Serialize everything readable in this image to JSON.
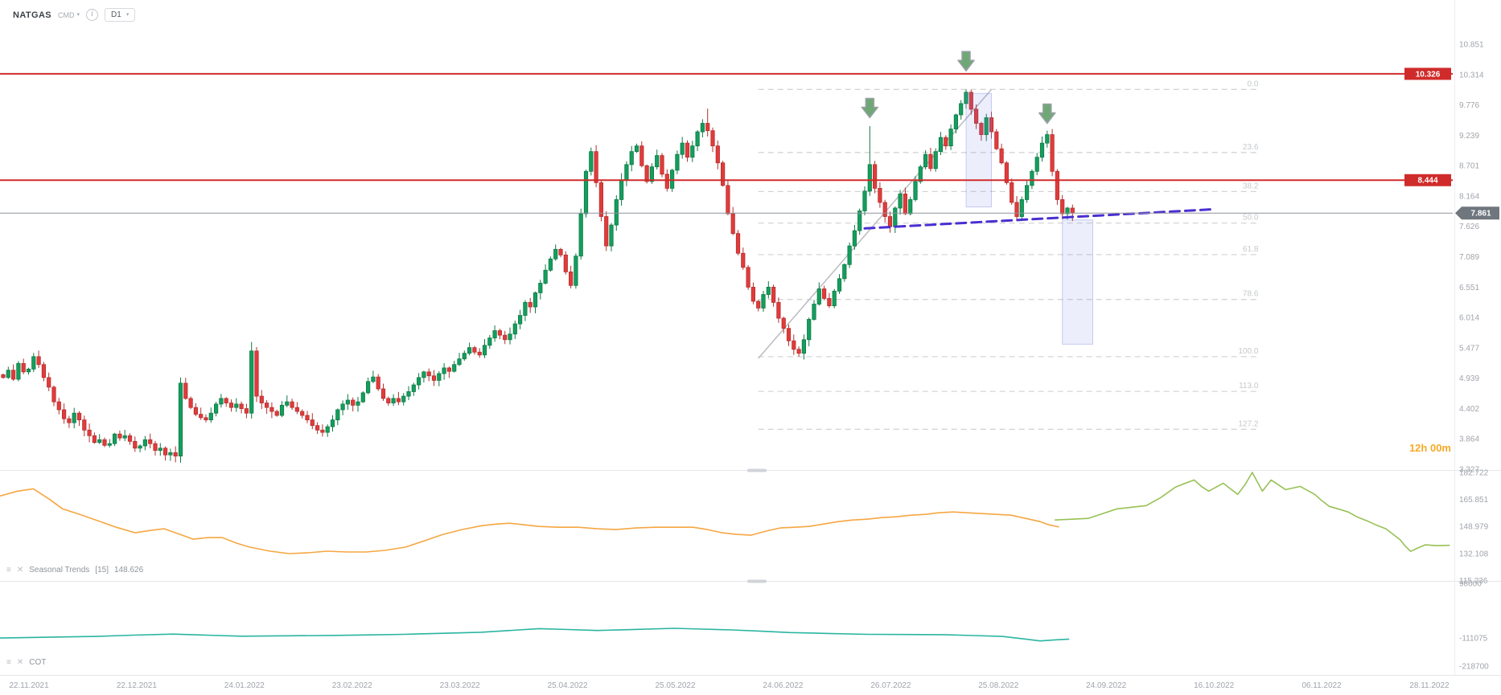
{
  "header": {
    "symbol": "NATGAS",
    "market": "CMD",
    "timeframe": "D1"
  },
  "colors": {
    "bull": "#149e5d",
    "bull_border": "#0d7a45",
    "bear": "#e23b3b",
    "bear_border": "#b62f2f",
    "resistance": "#d02b2b",
    "current_line": "#8d939b",
    "current_tag": "#70767e",
    "fib": "#d5d5d5",
    "fib_label": "#c4c8cc",
    "trend_gray": "#b8bcc2",
    "trend_purple": "#4a2fd1",
    "box_fill": "#6e78dd",
    "arrow_fill": "#6fa876",
    "arrow_border": "#9aa0a6",
    "axis_text": "#a0a4ab",
    "separator": "#e4e6e9",
    "seasonal_orange": "#f5a742",
    "seasonal_green": "#97c155",
    "cot_teal": "#2ab5a0",
    "countdown": "#f7a928"
  },
  "chart_data": {
    "type": "candlestick",
    "title": "NATGAS D1",
    "countdown": "12h 00m",
    "x_axis": {
      "labels": [
        "22.11.2021",
        "22.12.2021",
        "24.01.2022",
        "23.02.2022",
        "23.03.2022",
        "25.04.2022",
        "25.05.2022",
        "24.06.2022",
        "26.07.2022",
        "25.08.2022",
        "24.09.2022",
        "16.10.2022",
        "06.11.2022",
        "28.11.2022"
      ]
    },
    "y_axis": {
      "tick_labels": [
        "10.851",
        "10.314",
        "9.776",
        "9.239",
        "8.701",
        "8.164",
        "7.626",
        "7.089",
        "6.551",
        "6.014",
        "5.477",
        "4.939",
        "4.402",
        "3.864",
        "3.327"
      ]
    },
    "candles": {
      "closes": [
        4.95,
        5.08,
        4.92,
        5.2,
        5.05,
        5.1,
        5.32,
        5.18,
        4.95,
        4.78,
        4.52,
        4.38,
        4.22,
        4.15,
        4.32,
        4.2,
        4.02,
        3.92,
        3.8,
        3.85,
        3.75,
        3.78,
        3.95,
        3.88,
        3.92,
        3.82,
        3.7,
        3.74,
        3.85,
        3.78,
        3.66,
        3.7,
        3.58,
        3.62,
        3.56,
        4.85,
        4.58,
        4.42,
        4.3,
        4.24,
        4.2,
        4.32,
        4.48,
        4.58,
        4.5,
        4.42,
        4.48,
        4.4,
        4.32,
        5.42,
        4.62,
        4.5,
        4.42,
        4.35,
        4.28,
        4.46,
        4.52,
        4.42,
        4.35,
        4.28,
        4.2,
        4.1,
        4.02,
        3.98,
        4.08,
        4.2,
        4.38,
        4.48,
        4.55,
        4.46,
        4.52,
        4.68,
        4.88,
        4.96,
        4.75,
        4.58,
        4.5,
        4.58,
        4.52,
        4.62,
        4.7,
        4.82,
        4.95,
        5.05,
        4.98,
        4.9,
        5.02,
        5.12,
        5.06,
        5.18,
        5.28,
        5.38,
        5.48,
        5.4,
        5.35,
        5.52,
        5.65,
        5.78,
        5.7,
        5.62,
        5.72,
        5.9,
        6.05,
        6.28,
        6.2,
        6.45,
        6.62,
        6.85,
        7.05,
        7.22,
        7.12,
        6.82,
        6.58,
        7.1,
        7.85,
        8.6,
        8.95,
        8.4,
        7.8,
        7.28,
        7.65,
        8.1,
        8.45,
        8.72,
        8.95,
        9.05,
        8.7,
        8.42,
        8.68,
        8.88,
        8.55,
        8.3,
        8.62,
        8.9,
        9.1,
        8.85,
        9.05,
        9.3,
        9.45,
        9.32,
        9.05,
        8.75,
        8.35,
        7.85,
        7.5,
        7.15,
        6.9,
        6.55,
        6.3,
        6.18,
        6.42,
        6.55,
        6.28,
        6.0,
        5.82,
        5.6,
        5.45,
        5.38,
        5.62,
        5.98,
        6.25,
        6.52,
        6.35,
        6.22,
        6.48,
        6.7,
        6.95,
        7.28,
        7.55,
        7.9,
        8.25,
        8.72,
        8.3,
        8.05,
        7.8,
        7.62,
        7.95,
        8.2,
        7.85,
        8.1,
        8.42,
        8.68,
        8.9,
        8.65,
        8.95,
        9.2,
        9.05,
        9.35,
        9.6,
        9.8,
        10.0,
        9.7,
        9.45,
        9.25,
        9.55,
        9.3,
        9.0,
        8.75,
        8.4,
        8.05,
        7.8,
        8.1,
        8.35,
        8.6,
        8.85,
        9.1,
        9.25,
        8.6,
        8.1,
        7.85,
        7.95,
        7.861
      ],
      "wick_overrides": {
        "35": {
          "high": 4.95
        },
        "49": {
          "high": 5.58
        },
        "139": {
          "high": 9.71
        },
        "157": {
          "low": 5.32
        },
        "171": {
          "high": 9.4
        },
        "190": {
          "high": 10.05
        },
        "206": {
          "high": 9.32
        },
        "211": {
          "low": 7.72
        }
      }
    },
    "price_lines": [
      {
        "price": 10.326,
        "label": "10.326"
      },
      {
        "price": 8.444,
        "label": "8.444"
      }
    ],
    "current_price": {
      "value": 7.861,
      "label": "7.861"
    },
    "fibonacci": {
      "start_day": 149,
      "end_day": 248,
      "price_high": 10.05,
      "price_low": 5.32,
      "levels": [
        {
          "label": "0.0",
          "pct": 0
        },
        {
          "label": "23.6",
          "pct": 23.6
        },
        {
          "label": "38.2",
          "pct": 38.2
        },
        {
          "label": "50.0",
          "pct": 50.0
        },
        {
          "label": "61.8",
          "pct": 61.8
        },
        {
          "label": "78.6",
          "pct": 78.6
        },
        {
          "label": "100.0",
          "pct": 100.0
        },
        {
          "label": "113.0",
          "pct": 113.0
        },
        {
          "label": "127.2",
          "pct": 127.2
        }
      ]
    },
    "trendlines": [
      {
        "name": "rally-trendline",
        "from": [
          149,
          5.29
        ],
        "to": [
          195,
          10.05
        ],
        "style": "solid",
        "color_key": "trend_gray",
        "width": 1.5
      },
      {
        "name": "support-trendline",
        "from": [
          170,
          7.59
        ],
        "to": [
          239,
          7.93
        ],
        "style": "dashed",
        "color_key": "trend_purple",
        "width": 3
      }
    ],
    "boxes": [
      {
        "days": [
          190,
          195
        ],
        "prices": [
          9.98,
          7.97
        ]
      },
      {
        "days": [
          209,
          215
        ],
        "prices": [
          7.74,
          5.54
        ]
      }
    ],
    "arrows": [
      {
        "day": 171,
        "tip_price": 9.55
      },
      {
        "day": 190,
        "tip_price": 10.38
      },
      {
        "day": 206,
        "tip_price": 9.45
      }
    ],
    "panels": [
      {
        "name": "Seasonal Trends",
        "param": "[15]",
        "value": "148.626",
        "y_tick_labels": [
          "182.722",
          "165.851",
          "148.979",
          "132.108",
          "115.236"
        ],
        "series": [
          {
            "name": "seasonal-history",
            "color_key": "seasonal_orange",
            "points": [
              [
                0.0,
                168.0
              ],
              [
                0.012,
                171.0
              ],
              [
                0.023,
                172.5
              ],
              [
                0.034,
                166.0
              ],
              [
                0.043,
                160.0
              ],
              [
                0.055,
                156.5
              ],
              [
                0.066,
                153.0
              ],
              [
                0.08,
                148.5
              ],
              [
                0.093,
                145.0
              ],
              [
                0.104,
                146.5
              ],
              [
                0.113,
                147.5
              ],
              [
                0.124,
                144.0
              ],
              [
                0.133,
                141.0
              ],
              [
                0.143,
                142.0
              ],
              [
                0.153,
                142.0
              ],
              [
                0.163,
                138.5
              ],
              [
                0.172,
                136.0
              ],
              [
                0.186,
                133.5
              ],
              [
                0.199,
                132.0
              ],
              [
                0.212,
                132.5
              ],
              [
                0.225,
                133.5
              ],
              [
                0.239,
                133.0
              ],
              [
                0.252,
                133.0
              ],
              [
                0.265,
                134.0
              ],
              [
                0.279,
                136.0
              ],
              [
                0.292,
                140.0
              ],
              [
                0.305,
                144.0
              ],
              [
                0.318,
                147.0
              ],
              [
                0.332,
                149.5
              ],
              [
                0.342,
                150.5
              ],
              [
                0.351,
                151.0
              ],
              [
                0.361,
                150.0
              ],
              [
                0.371,
                149.0
              ],
              [
                0.384,
                148.5
              ],
              [
                0.398,
                148.5
              ],
              [
                0.411,
                147.5
              ],
              [
                0.424,
                147.0
              ],
              [
                0.438,
                148.0
              ],
              [
                0.451,
                148.5
              ],
              [
                0.464,
                148.5
              ],
              [
                0.477,
                148.5
              ],
              [
                0.487,
                147.0
              ],
              [
                0.497,
                145.0
              ],
              [
                0.507,
                144.0
              ],
              [
                0.517,
                143.5
              ],
              [
                0.527,
                146.0
              ],
              [
                0.537,
                148.0
              ],
              [
                0.547,
                148.5
              ],
              [
                0.557,
                149.0
              ],
              [
                0.567,
                150.5
              ],
              [
                0.577,
                152.0
              ],
              [
                0.587,
                153.0
              ],
              [
                0.597,
                153.5
              ],
              [
                0.607,
                154.5
              ],
              [
                0.617,
                155.0
              ],
              [
                0.627,
                156.0
              ],
              [
                0.637,
                156.5
              ],
              [
                0.646,
                157.5
              ],
              [
                0.656,
                158.0
              ],
              [
                0.666,
                157.5
              ],
              [
                0.676,
                157.0
              ],
              [
                0.686,
                156.5
              ],
              [
                0.696,
                156.0
              ],
              [
                0.706,
                154.0
              ],
              [
                0.716,
                152.0
              ],
              [
                0.722,
                150.0
              ],
              [
                0.729,
                148.626
              ]
            ]
          },
          {
            "name": "seasonal-projection",
            "color_key": "seasonal_green",
            "points": [
              [
                0.726,
                153.0
              ],
              [
                0.738,
                153.5
              ],
              [
                0.749,
                154.0
              ],
              [
                0.759,
                157.0
              ],
              [
                0.769,
                160.0
              ],
              [
                0.779,
                161.0
              ],
              [
                0.789,
                162.0
              ],
              [
                0.799,
                167.0
              ],
              [
                0.809,
                173.5
              ],
              [
                0.816,
                176.0
              ],
              [
                0.822,
                178.0
              ],
              [
                0.827,
                174.0
              ],
              [
                0.832,
                171.0
              ],
              [
                0.837,
                173.5
              ],
              [
                0.842,
                176.0
              ],
              [
                0.847,
                172.5
              ],
              [
                0.852,
                169.0
              ],
              [
                0.857,
                175.0
              ],
              [
                0.862,
                182.7
              ],
              [
                0.866,
                176.0
              ],
              [
                0.869,
                171.0
              ],
              [
                0.872,
                174.5
              ],
              [
                0.875,
                178.0
              ],
              [
                0.88,
                175.0
              ],
              [
                0.885,
                172.0
              ],
              [
                0.89,
                173.0
              ],
              [
                0.895,
                174.0
              ],
              [
                0.9,
                171.5
              ],
              [
                0.905,
                169.0
              ],
              [
                0.91,
                165.0
              ],
              [
                0.915,
                161.5
              ],
              [
                0.921,
                160.0
              ],
              [
                0.928,
                158.0
              ],
              [
                0.934,
                155.0
              ],
              [
                0.941,
                152.5
              ],
              [
                0.947,
                150.0
              ],
              [
                0.954,
                147.5
              ],
              [
                0.959,
                144.0
              ],
              [
                0.964,
                140.5
              ],
              [
                0.967,
                137.0
              ],
              [
                0.971,
                133.4
              ],
              [
                0.976,
                135.5
              ],
              [
                0.981,
                137.5
              ],
              [
                0.989,
                137.0
              ],
              [
                0.998,
                137.2
              ]
            ]
          }
        ]
      },
      {
        "name": "COT",
        "param": "",
        "value": "",
        "y_tick_labels": [
          "98000",
          "-111075",
          "-218700"
        ],
        "series": [
          {
            "name": "cot-line",
            "color_key": "cot_teal",
            "points": [
              [
                0.0,
                -111000
              ],
              [
                0.033,
                -108000
              ],
              [
                0.066,
                -105000
              ],
              [
                0.092,
                -100000
              ],
              [
                0.119,
                -96000
              ],
              [
                0.142,
                -100000
              ],
              [
                0.166,
                -104000
              ],
              [
                0.199,
                -102500
              ],
              [
                0.232,
                -101000
              ],
              [
                0.255,
                -99000
              ],
              [
                0.278,
                -97000
              ],
              [
                0.305,
                -93000
              ],
              [
                0.331,
                -89000
              ],
              [
                0.351,
                -82000
              ],
              [
                0.371,
                -75000
              ],
              [
                0.391,
                -78500
              ],
              [
                0.411,
                -82000
              ],
              [
                0.437,
                -78000
              ],
              [
                0.464,
                -74000
              ],
              [
                0.484,
                -77000
              ],
              [
                0.504,
                -80000
              ],
              [
                0.524,
                -85000
              ],
              [
                0.544,
                -90000
              ],
              [
                0.57,
                -93500
              ],
              [
                0.597,
                -97000
              ],
              [
                0.623,
                -97500
              ],
              [
                0.65,
                -98000
              ],
              [
                0.67,
                -101500
              ],
              [
                0.69,
                -105000
              ],
              [
                0.703,
                -113000
              ],
              [
                0.716,
                -122000
              ],
              [
                0.726,
                -118000
              ],
              [
                0.736,
                -115000
              ]
            ]
          }
        ]
      }
    ]
  }
}
